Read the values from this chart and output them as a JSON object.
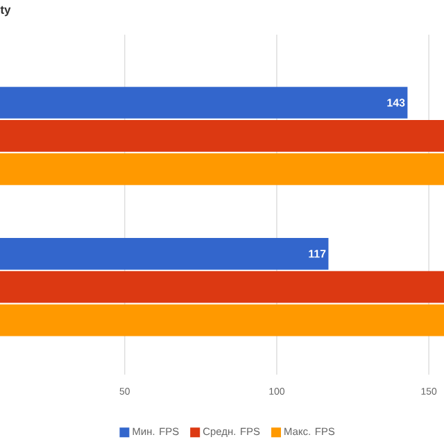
{
  "chart_data": {
    "type": "bar",
    "orientation": "horizontal",
    "title": "ty",
    "categories": [
      null,
      null
    ],
    "series": [
      {
        "name": "Мин. FPS",
        "color": "#3366cc",
        "values": [
          143,
          117
        ],
        "value_labels": [
          "143",
          "117"
        ]
      },
      {
        "name": "Средн. FPS",
        "color": "#dc3912",
        "values": [
          155,
          155
        ],
        "value_labels": [
          null,
          null
        ]
      },
      {
        "name": "Макс. FPS",
        "color": "#ff9900",
        "values": [
          155,
          155
        ],
        "value_labels": [
          null,
          null
        ]
      }
    ],
    "xlim": [
      9,
      155
    ],
    "xticks": [
      50,
      100,
      150
    ],
    "grid": "x",
    "legend": "bottom"
  }
}
